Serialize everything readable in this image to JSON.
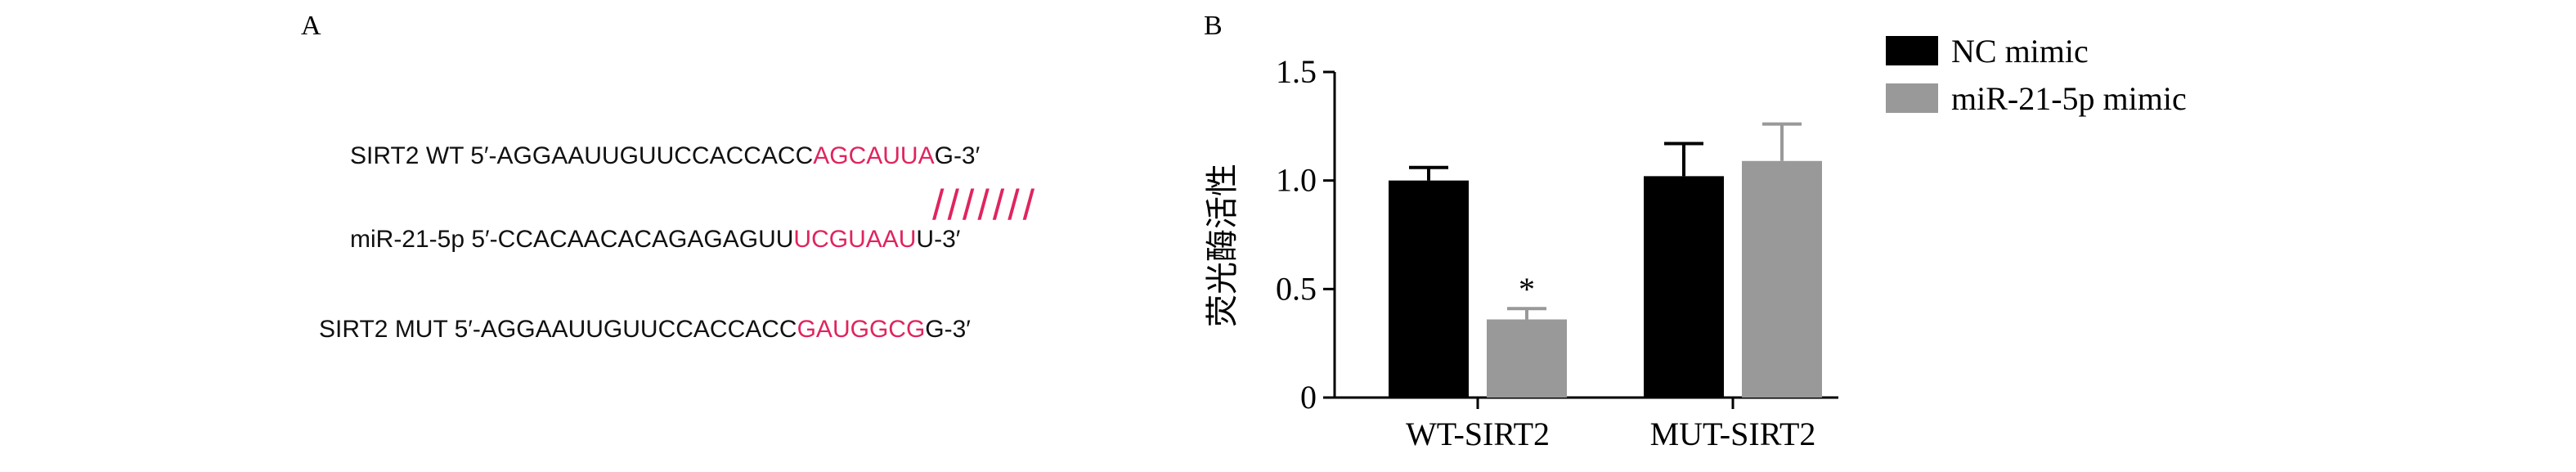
{
  "panel_a": {
    "label": "A",
    "rows": [
      {
        "prefix": "SIRT2 WT 5′-AGGAAUUGUUCCACCACC",
        "highlight": "AGCAUUA",
        "suffix": "G-3′"
      },
      {
        "prefix": "miR-21-5p 5′-CCACAACACAGAGAGUU",
        "highlight": "UCGUAAU",
        "suffix": "U-3′"
      },
      {
        "prefix": "SIRT2 MUT 5′-AGGAAUUGUUCCACCACC",
        "highlight": "GAUGGCG",
        "suffix": "G-3′"
      }
    ],
    "pairing_marks": "///////",
    "highlight_color": "#e0245e"
  },
  "chart_data": {
    "type": "bar",
    "panel_label": "B",
    "categories": [
      "WT-SIRT2",
      "MUT-SIRT2"
    ],
    "series": [
      {
        "name": "NC mimic",
        "values": [
          1.0,
          1.02
        ],
        "errors": [
          0.06,
          0.15
        ],
        "color": "#000000"
      },
      {
        "name": "miR-21-5p mimic",
        "values": [
          0.36,
          1.09
        ],
        "errors": [
          0.05,
          0.17
        ],
        "color": "#999999"
      }
    ],
    "annotations": [
      {
        "category_index": 0,
        "series_index": 1,
        "text": "*"
      }
    ],
    "ylabel": "荧光酶活性",
    "xlabel": "",
    "ylim": [
      0,
      1.5
    ],
    "yticks": [
      {
        "value": 0,
        "label": "0"
      },
      {
        "value": 0.5,
        "label": "0.5"
      },
      {
        "value": 1.0,
        "label": "1.0"
      },
      {
        "value": 1.5,
        "label": "1.5"
      }
    ],
    "grid": false,
    "legend_position": "top-right"
  }
}
